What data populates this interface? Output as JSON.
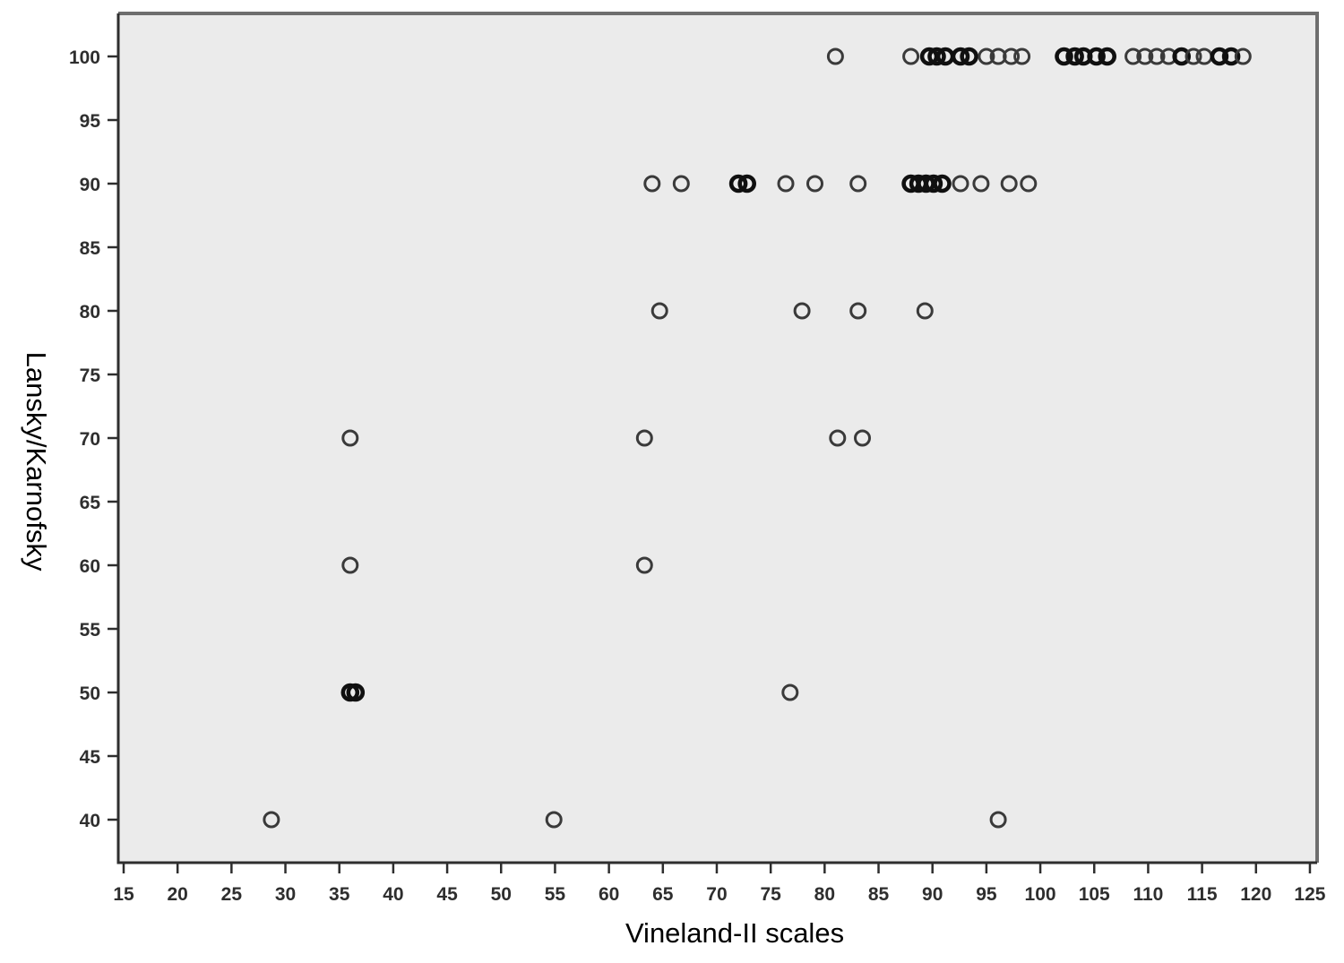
{
  "chart_data": {
    "type": "scatter",
    "title": "",
    "xlabel": "Vineland-II scales",
    "ylabel": "Lansky/Karnofsky",
    "xlim": [
      15,
      125
    ],
    "ylim": [
      37,
      103
    ],
    "x_ticks": [
      15,
      20,
      25,
      30,
      35,
      40,
      45,
      50,
      55,
      60,
      65,
      70,
      75,
      80,
      85,
      90,
      95,
      100,
      105,
      110,
      115,
      120,
      125
    ],
    "y_ticks": [
      40,
      45,
      50,
      55,
      60,
      65,
      70,
      75,
      80,
      85,
      90,
      95,
      100
    ],
    "grid": false,
    "legend": "none",
    "marker": "open-circle",
    "point_format": "[x, y, overlapped_dark_flag]",
    "points": [
      [
        81.0,
        100,
        0
      ],
      [
        88.0,
        100,
        0
      ],
      [
        89.7,
        100,
        1
      ],
      [
        90.4,
        100,
        1
      ],
      [
        91.2,
        100,
        1
      ],
      [
        92.6,
        100,
        1
      ],
      [
        93.4,
        100,
        1
      ],
      [
        95.0,
        100,
        0
      ],
      [
        96.1,
        100,
        0
      ],
      [
        97.3,
        100,
        0
      ],
      [
        98.3,
        100,
        0
      ],
      [
        102.2,
        100,
        1
      ],
      [
        103.2,
        100,
        1
      ],
      [
        104.0,
        100,
        1
      ],
      [
        105.2,
        100,
        1
      ],
      [
        106.2,
        100,
        1
      ],
      [
        108.6,
        100,
        0
      ],
      [
        109.7,
        100,
        0
      ],
      [
        110.8,
        100,
        0
      ],
      [
        111.9,
        100,
        0
      ],
      [
        113.1,
        100,
        1
      ],
      [
        114.2,
        100,
        0
      ],
      [
        115.2,
        100,
        0
      ],
      [
        116.6,
        100,
        1
      ],
      [
        117.7,
        100,
        1
      ],
      [
        118.8,
        100,
        0
      ],
      [
        64.0,
        90,
        0
      ],
      [
        66.7,
        90,
        0
      ],
      [
        72.0,
        90,
        1
      ],
      [
        72.8,
        90,
        1
      ],
      [
        76.4,
        90,
        0
      ],
      [
        79.1,
        90,
        0
      ],
      [
        83.1,
        90,
        0
      ],
      [
        88.0,
        90,
        1
      ],
      [
        88.7,
        90,
        1
      ],
      [
        89.4,
        90,
        1
      ],
      [
        90.1,
        90,
        1
      ],
      [
        90.9,
        90,
        1
      ],
      [
        92.6,
        90,
        0
      ],
      [
        94.5,
        90,
        0
      ],
      [
        97.1,
        90,
        0
      ],
      [
        98.9,
        90,
        0
      ],
      [
        64.7,
        80,
        0
      ],
      [
        77.9,
        80,
        0
      ],
      [
        83.1,
        80,
        0
      ],
      [
        89.3,
        80,
        0
      ],
      [
        36.0,
        70,
        0
      ],
      [
        63.3,
        70,
        0
      ],
      [
        81.2,
        70,
        0
      ],
      [
        83.5,
        70,
        0
      ],
      [
        36.0,
        60,
        0
      ],
      [
        63.3,
        60,
        0
      ],
      [
        36.0,
        50,
        1
      ],
      [
        36.5,
        50,
        1
      ],
      [
        76.8,
        50,
        0
      ],
      [
        28.7,
        40,
        0
      ],
      [
        54.9,
        40,
        0
      ],
      [
        96.1,
        40,
        0
      ]
    ]
  },
  "style": {
    "plot_bg": "#ebebeb",
    "page_bg": "#ffffff",
    "frame_color": "#6e6e6e",
    "axis_color": "#2e2e2e",
    "marker_color": "#3a3a3a",
    "marker_dark_color": "#101010"
  }
}
